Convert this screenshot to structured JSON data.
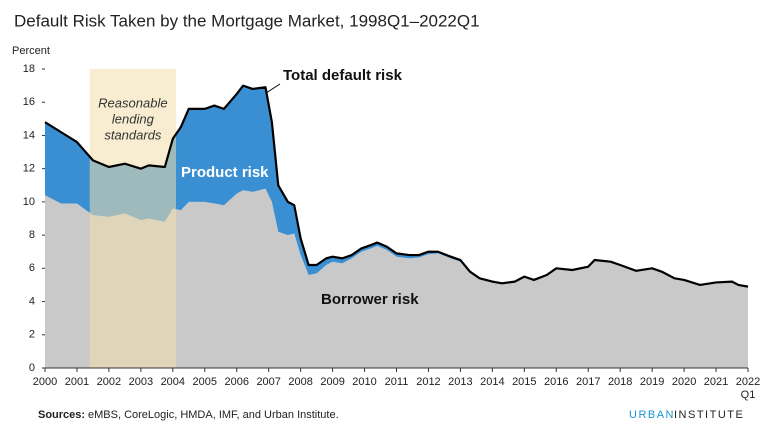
{
  "chart_data": {
    "type": "stacked_area",
    "title": "Default Risk Taken by the Mortgage Market, 1998Q1–2022Q1",
    "y_axis_label": "Percent",
    "x": [
      2000,
      2000.5,
      2001,
      2001.5,
      2002,
      2002.5,
      2003,
      2003.25,
      2003.75,
      2004,
      2004.25,
      2004.5,
      2005,
      2005.3,
      2005.6,
      2006,
      2006.2,
      2006.5,
      2006.9,
      2007.1,
      2007.3,
      2007.6,
      2007.8,
      2008,
      2008.25,
      2008.5,
      2008.8,
      2009,
      2009.3,
      2009.6,
      2009.9,
      2010.2,
      2010.4,
      2010.7,
      2011,
      2011.4,
      2011.7,
      2012,
      2012.3,
      2012.7,
      2013,
      2013.3,
      2013.6,
      2014,
      2014.3,
      2014.7,
      2015,
      2015.3,
      2015.7,
      2016,
      2016.5,
      2017,
      2017.2,
      2017.7,
      2018,
      2018.5,
      2019,
      2019.3,
      2019.7,
      2020,
      2020.5,
      2021,
      2021.5,
      2021.7,
      2022
    ],
    "series": [
      {
        "name": "Borrower risk",
        "color": "#c9c9c9",
        "values": [
          10.4,
          9.9,
          9.9,
          9.2,
          9.1,
          9.3,
          8.9,
          9.0,
          8.8,
          9.6,
          9.5,
          10.0,
          10.0,
          9.9,
          9.8,
          10.5,
          10.7,
          10.6,
          10.8,
          10.0,
          8.2,
          8.0,
          8.1,
          6.8,
          5.6,
          5.7,
          6.2,
          6.4,
          6.3,
          6.6,
          7.0,
          7.2,
          7.35,
          7.1,
          6.7,
          6.6,
          6.65,
          6.85,
          6.9,
          6.6,
          6.4,
          5.7,
          5.35,
          5.15,
          5.05,
          5.15,
          5.45,
          5.25,
          5.55,
          5.95,
          5.85,
          6.05,
          6.45,
          6.35,
          6.15,
          5.8,
          5.95,
          5.75,
          5.35,
          5.25,
          4.95,
          5.1,
          5.15,
          4.95,
          4.85
        ]
      },
      {
        "name": "Product risk",
        "color": "#3a8fd2",
        "values": [
          4.4,
          4.3,
          3.7,
          3.3,
          3.0,
          3.0,
          3.1,
          3.2,
          3.3,
          4.2,
          5.0,
          5.6,
          5.6,
          5.9,
          5.8,
          6.0,
          6.3,
          6.2,
          6.1,
          4.8,
          2.8,
          2.0,
          1.7,
          1.0,
          0.6,
          0.5,
          0.4,
          0.3,
          0.3,
          0.2,
          0.2,
          0.2,
          0.2,
          0.2,
          0.2,
          0.2,
          0.15,
          0.15,
          0.1,
          0.1,
          0.1,
          0.1,
          0.05,
          0.05,
          0.05,
          0.05,
          0.05,
          0.05,
          0.05,
          0.05,
          0.05,
          0.05,
          0.05,
          0.05,
          0.05,
          0.05,
          0.05,
          0.05,
          0.05,
          0.05,
          0.05,
          0.05,
          0.05,
          0.05,
          0.05
        ]
      }
    ],
    "total_line_label": "Total default risk",
    "total_line_color": "#000000",
    "shaded_period": {
      "range": [
        2001.4,
        2004.1
      ],
      "color": "#f3dfaa",
      "label": [
        "Reasonable",
        "lending",
        "standards"
      ]
    },
    "xlim": [
      2000,
      2022
    ],
    "xticks": [
      2000,
      2001,
      2002,
      2003,
      2004,
      2005,
      2006,
      2007,
      2008,
      2009,
      2010,
      2011,
      2012,
      2013,
      2014,
      2015,
      2016,
      2017,
      2018,
      2019,
      2020,
      2021,
      2022
    ],
    "last_tick_sublabel": "Q1",
    "ylim": [
      0,
      18
    ],
    "yticks": [
      0,
      2,
      4,
      6,
      8,
      10,
      12,
      14,
      16,
      18
    ],
    "grid": false,
    "source_label": "Sources:",
    "source": "eMBS, CoreLogic, HMDA, IMF, and Urban Institute.",
    "logo": [
      "URBAN",
      "INSTITUTE"
    ]
  }
}
